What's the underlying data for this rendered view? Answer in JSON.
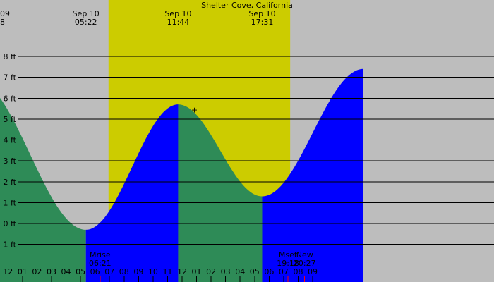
{
  "chart_data": {
    "type": "area",
    "title": "Shelter Cove, California",
    "xlabel": "",
    "ylabel": "",
    "colors": {
      "night_background": "#bdbdbd",
      "day_background": "#cccc00",
      "falling_tide": "#2e8b57",
      "rising_tide": "#0000ff",
      "gridline": "#000000",
      "text": "#000000",
      "moon_tick": "#ff0000"
    },
    "x_unit": "hour of day (Sep 10; 24+ = next day)",
    "y_unit": "ft",
    "xlim": [
      -0.55,
      33.5
    ],
    "ylim": [
      -2.8,
      10.7
    ],
    "y_ticks": [
      {
        "value": 8,
        "label": "8 ft"
      },
      {
        "value": 7,
        "label": "7 ft"
      },
      {
        "value": 6,
        "label": "6 ft"
      },
      {
        "value": 5,
        "label": "5 ft"
      },
      {
        "value": 4,
        "label": "4 ft"
      },
      {
        "value": 3,
        "label": "3 ft"
      },
      {
        "value": 2,
        "label": "2 ft"
      },
      {
        "value": 1,
        "label": "1 ft"
      },
      {
        "value": 0,
        "label": "0 ft"
      },
      {
        "value": -1,
        "label": "-1 ft"
      }
    ],
    "x_ticks": [
      {
        "value": -1,
        "label": "11"
      },
      {
        "value": 0,
        "label": "12"
      },
      {
        "value": 1,
        "label": "01"
      },
      {
        "value": 2,
        "label": "02"
      },
      {
        "value": 3,
        "label": "03"
      },
      {
        "value": 4,
        "label": "04"
      },
      {
        "value": 5,
        "label": "05"
      },
      {
        "value": 6,
        "label": "06"
      },
      {
        "value": 7,
        "label": "07"
      },
      {
        "value": 8,
        "label": "08"
      },
      {
        "value": 9,
        "label": "09"
      },
      {
        "value": 10,
        "label": "10"
      },
      {
        "value": 11,
        "label": "11"
      },
      {
        "value": 12,
        "label": "12"
      },
      {
        "value": 13,
        "label": "01"
      },
      {
        "value": 14,
        "label": "02"
      },
      {
        "value": 15,
        "label": "03"
      },
      {
        "value": 16,
        "label": "04"
      },
      {
        "value": 17,
        "label": "05"
      },
      {
        "value": 18,
        "label": "06"
      },
      {
        "value": 19,
        "label": "07"
      },
      {
        "value": 20,
        "label": "08"
      },
      {
        "value": 21,
        "label": "09"
      }
    ],
    "day_periods": [
      {
        "start": 6.93,
        "end": 19.45
      }
    ],
    "tide_extremes": [
      {
        "time": -2.3,
        "height": 6.9,
        "type": "high"
      },
      {
        "time": 5.37,
        "height": -0.3,
        "type": "low"
      },
      {
        "time": 11.73,
        "height": 5.7,
        "type": "high"
      },
      {
        "time": 17.52,
        "height": 1.3,
        "type": "low"
      },
      {
        "time": 24.5,
        "height": 7.4,
        "type": "high"
      }
    ],
    "top_labels": [
      {
        "time": -0.55,
        "line1": "09",
        "line2": "8",
        "anchor": "start"
      },
      {
        "time": 5.37,
        "line1": "Sep 10",
        "line2": "05:22",
        "anchor": "middle"
      },
      {
        "time": 11.73,
        "line1": "Sep 10",
        "line2": "11:44",
        "anchor": "middle"
      },
      {
        "time": 17.52,
        "line1": "Sep 10",
        "line2": "17:31",
        "anchor": "middle"
      }
    ],
    "bottom_labels": [
      {
        "time": 6.35,
        "line1": "Mrise",
        "line2": "06:21"
      },
      {
        "time": 19.3,
        "line1": "Mset",
        "line2": "19:18"
      },
      {
        "time": 20.45,
        "line1": "New",
        "line2": "20:27"
      }
    ],
    "marker": {
      "time": 12.85,
      "height": 5.45,
      "symbol": "+"
    }
  }
}
